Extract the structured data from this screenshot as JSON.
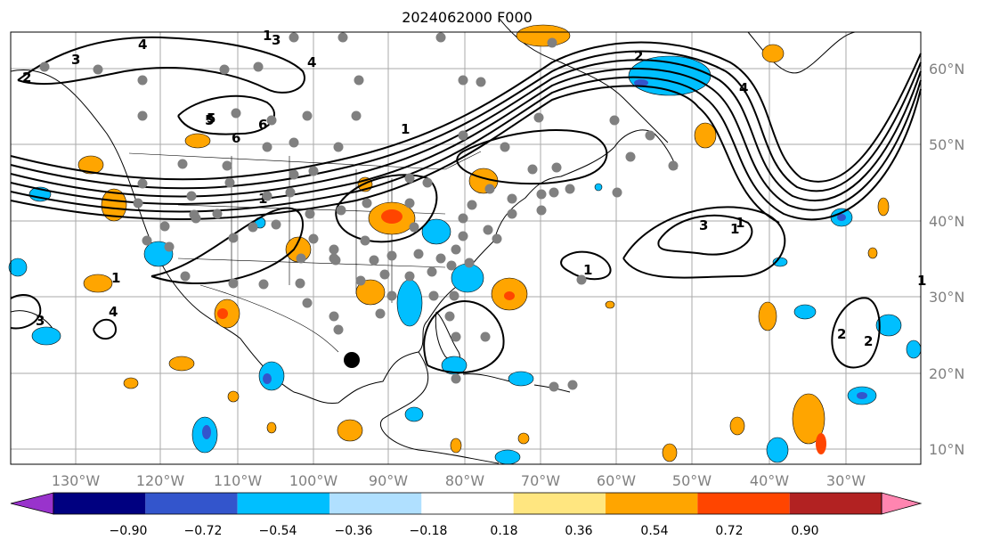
{
  "title": "2024062000 F000",
  "longitude_labels": [
    "130°W",
    "120°W",
    "110°W",
    "100°W",
    "90°W",
    "80°W",
    "70°W",
    "60°W",
    "50°W",
    "40°W",
    "30°W"
  ],
  "latitude_labels": [
    "60°N",
    "50°N",
    "40°N",
    "30°N",
    "20°N",
    "10°N"
  ],
  "colorbar": {
    "tick_labels": [
      "−0.90",
      "−0.72",
      "−0.54",
      "−0.36",
      "−0.18",
      "0.18",
      "0.36",
      "0.54",
      "0.72",
      "0.90"
    ],
    "colors": [
      "#9933cc",
      "#000080",
      "#3355cc",
      "#00bfff",
      "#b0e0ff",
      "#ffffff",
      "#ffe680",
      "#ffa500",
      "#ff4500",
      "#b22222",
      "#ff85b0"
    ]
  },
  "contour_labels": [
    "1",
    "2",
    "3",
    "4",
    "5",
    "6",
    "4",
    "3",
    "2",
    "1",
    "1",
    "1",
    "1",
    "4",
    "3",
    "2",
    "1",
    "1",
    "6",
    "5",
    "4",
    "3",
    "2",
    "1"
  ],
  "fill_colors": {
    "positive_light": "#ffa500",
    "positive_strong": "#ff4500",
    "negative_light": "#00bfff",
    "negative_strong": "#3355cc",
    "station": "#808080"
  }
}
